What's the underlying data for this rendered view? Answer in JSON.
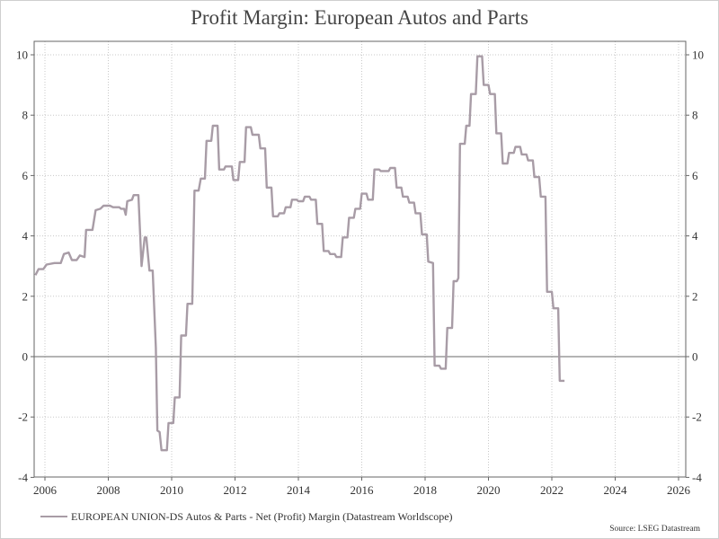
{
  "chart_data": {
    "type": "line",
    "title": "Profit Margin: European Autos and Parts",
    "xlabel": "",
    "ylabel": "",
    "xlim": [
      2005.7,
      2026.0
    ],
    "ylim": [
      -4,
      10.5
    ],
    "x_ticks": [
      "2006",
      "2008",
      "2010",
      "2012",
      "2014",
      "2016",
      "2018",
      "2020",
      "2022",
      "2024",
      "2026"
    ],
    "y_ticks": [
      "-4",
      "-2",
      "0",
      "2",
      "4",
      "6",
      "8",
      "10"
    ],
    "grid": true,
    "zero_line": true,
    "legend_position": "bottom-left",
    "series": [
      {
        "name": "EUROPEAN UNION-DS Autos & Parts - Net (Profit) Margin (Datastream Worldscope)",
        "color": "#a89ca6",
        "points": [
          [
            2005.7,
            2.7
          ],
          [
            2005.8,
            2.9
          ],
          [
            2005.95,
            2.9
          ],
          [
            2006.05,
            3.05
          ],
          [
            2006.3,
            3.1
          ],
          [
            2006.5,
            3.1
          ],
          [
            2006.6,
            3.4
          ],
          [
            2006.75,
            3.45
          ],
          [
            2006.85,
            3.2
          ],
          [
            2007.0,
            3.2
          ],
          [
            2007.1,
            3.35
          ],
          [
            2007.25,
            3.3
          ],
          [
            2007.3,
            4.2
          ],
          [
            2007.5,
            4.2
          ],
          [
            2007.6,
            4.85
          ],
          [
            2007.75,
            4.9
          ],
          [
            2007.85,
            5.0
          ],
          [
            2008.05,
            5.0
          ],
          [
            2008.15,
            4.95
          ],
          [
            2008.35,
            4.95
          ],
          [
            2008.4,
            4.9
          ],
          [
            2008.5,
            4.9
          ],
          [
            2008.55,
            4.7
          ],
          [
            2008.6,
            5.15
          ],
          [
            2008.75,
            5.2
          ],
          [
            2008.8,
            5.35
          ],
          [
            2008.95,
            5.35
          ],
          [
            2009.05,
            3.0
          ],
          [
            2009.15,
            3.95
          ],
          [
            2009.2,
            3.95
          ],
          [
            2009.3,
            2.85
          ],
          [
            2009.4,
            2.85
          ],
          [
            2009.5,
            0.3
          ],
          [
            2009.55,
            -2.45
          ],
          [
            2009.62,
            -2.5
          ],
          [
            2009.68,
            -3.1
          ],
          [
            2009.85,
            -3.1
          ],
          [
            2009.9,
            -2.2
          ],
          [
            2010.05,
            -2.2
          ],
          [
            2010.1,
            -1.35
          ],
          [
            2010.25,
            -1.35
          ],
          [
            2010.3,
            0.7
          ],
          [
            2010.45,
            0.7
          ],
          [
            2010.5,
            1.75
          ],
          [
            2010.65,
            1.75
          ],
          [
            2010.72,
            5.5
          ],
          [
            2010.85,
            5.5
          ],
          [
            2010.92,
            5.9
          ],
          [
            2011.05,
            5.9
          ],
          [
            2011.1,
            7.15
          ],
          [
            2011.25,
            7.15
          ],
          [
            2011.3,
            7.65
          ],
          [
            2011.45,
            7.65
          ],
          [
            2011.5,
            6.2
          ],
          [
            2011.65,
            6.2
          ],
          [
            2011.7,
            6.3
          ],
          [
            2011.9,
            6.3
          ],
          [
            2011.95,
            5.85
          ],
          [
            2012.1,
            5.85
          ],
          [
            2012.15,
            6.45
          ],
          [
            2012.3,
            6.45
          ],
          [
            2012.35,
            7.6
          ],
          [
            2012.5,
            7.6
          ],
          [
            2012.55,
            7.35
          ],
          [
            2012.75,
            7.35
          ],
          [
            2012.8,
            6.9
          ],
          [
            2012.95,
            6.9
          ],
          [
            2013.0,
            5.6
          ],
          [
            2013.15,
            5.6
          ],
          [
            2013.2,
            4.65
          ],
          [
            2013.35,
            4.65
          ],
          [
            2013.4,
            4.75
          ],
          [
            2013.55,
            4.75
          ],
          [
            2013.6,
            4.95
          ],
          [
            2013.75,
            4.95
          ],
          [
            2013.8,
            5.2
          ],
          [
            2013.95,
            5.2
          ],
          [
            2014.0,
            5.15
          ],
          [
            2014.15,
            5.15
          ],
          [
            2014.2,
            5.3
          ],
          [
            2014.35,
            5.3
          ],
          [
            2014.4,
            5.2
          ],
          [
            2014.55,
            5.2
          ],
          [
            2014.6,
            4.4
          ],
          [
            2014.75,
            4.4
          ],
          [
            2014.8,
            3.5
          ],
          [
            2014.95,
            3.5
          ],
          [
            2015.0,
            3.4
          ],
          [
            2015.15,
            3.4
          ],
          [
            2015.2,
            3.3
          ],
          [
            2015.35,
            3.3
          ],
          [
            2015.4,
            3.95
          ],
          [
            2015.55,
            3.95
          ],
          [
            2015.6,
            4.6
          ],
          [
            2015.75,
            4.6
          ],
          [
            2015.8,
            4.9
          ],
          [
            2015.95,
            4.9
          ],
          [
            2016.0,
            5.4
          ],
          [
            2016.15,
            5.4
          ],
          [
            2016.2,
            5.2
          ],
          [
            2016.35,
            5.2
          ],
          [
            2016.4,
            6.2
          ],
          [
            2016.55,
            6.2
          ],
          [
            2016.6,
            6.15
          ],
          [
            2016.85,
            6.15
          ],
          [
            2016.9,
            6.25
          ],
          [
            2017.05,
            6.25
          ],
          [
            2017.1,
            5.6
          ],
          [
            2017.25,
            5.6
          ],
          [
            2017.3,
            5.3
          ],
          [
            2017.45,
            5.3
          ],
          [
            2017.5,
            5.1
          ],
          [
            2017.65,
            5.1
          ],
          [
            2017.7,
            4.75
          ],
          [
            2017.85,
            4.75
          ],
          [
            2017.9,
            4.05
          ],
          [
            2018.05,
            4.05
          ],
          [
            2018.1,
            3.15
          ],
          [
            2018.25,
            3.1
          ],
          [
            2018.3,
            -0.3
          ],
          [
            2018.45,
            -0.3
          ],
          [
            2018.5,
            -0.4
          ],
          [
            2018.65,
            -0.4
          ],
          [
            2018.7,
            0.95
          ],
          [
            2018.85,
            0.95
          ],
          [
            2018.9,
            2.5
          ],
          [
            2019.0,
            2.5
          ],
          [
            2019.05,
            2.6
          ],
          [
            2019.1,
            7.05
          ],
          [
            2019.25,
            7.05
          ],
          [
            2019.3,
            7.65
          ],
          [
            2019.4,
            7.65
          ],
          [
            2019.45,
            8.7
          ],
          [
            2019.6,
            8.7
          ],
          [
            2019.65,
            9.95
          ],
          [
            2019.8,
            9.95
          ],
          [
            2019.85,
            9.0
          ],
          [
            2020.0,
            9.0
          ],
          [
            2020.05,
            8.7
          ],
          [
            2020.2,
            8.7
          ],
          [
            2020.25,
            7.4
          ],
          [
            2020.4,
            7.4
          ],
          [
            2020.45,
            6.4
          ],
          [
            2020.6,
            6.4
          ],
          [
            2020.65,
            6.75
          ],
          [
            2020.8,
            6.75
          ],
          [
            2020.85,
            6.95
          ],
          [
            2021.0,
            6.95
          ],
          [
            2021.05,
            6.7
          ],
          [
            2021.2,
            6.7
          ],
          [
            2021.25,
            6.5
          ],
          [
            2021.4,
            6.5
          ],
          [
            2021.45,
            5.95
          ],
          [
            2021.6,
            5.95
          ],
          [
            2021.65,
            5.3
          ],
          [
            2021.8,
            5.3
          ],
          [
            2021.85,
            2.15
          ],
          [
            2022.0,
            2.15
          ],
          [
            2022.05,
            1.6
          ],
          [
            2022.2,
            1.6
          ],
          [
            2022.25,
            -0.8
          ],
          [
            2022.4,
            -0.8
          ]
        ]
      }
    ],
    "source": "Source: LSEG Datastream"
  }
}
